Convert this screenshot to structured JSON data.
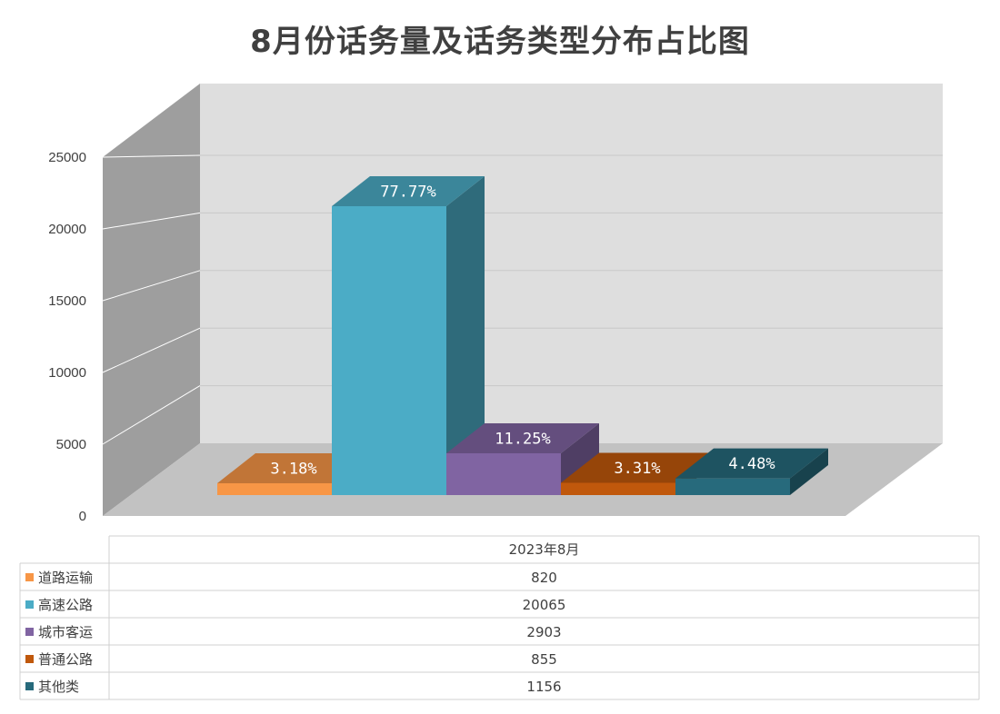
{
  "title": "8月份话务量及话务类型分布占比图",
  "chart_data": {
    "type": "bar",
    "title": "8月份话务量及话务类型分布占比图",
    "categories": [
      "2023年8月"
    ],
    "series": [
      {
        "name": "道路运输",
        "values": [
          820
        ],
        "data_label": "3.18%",
        "color": "#f79646"
      },
      {
        "name": "高速公路",
        "values": [
          20065
        ],
        "data_label": "77.77%",
        "color": "#4bacc6"
      },
      {
        "name": "城市客运",
        "values": [
          2903
        ],
        "data_label": "11.25%",
        "color": "#8064a2"
      },
      {
        "name": "普通公路",
        "values": [
          855
        ],
        "data_label": "3.31%",
        "color": "#c0580c"
      },
      {
        "name": "其他类",
        "values": [
          1156
        ],
        "data_label": "4.48%",
        "color": "#276a7c"
      }
    ],
    "ylim": [
      0,
      25000
    ],
    "yticks": [
      0,
      5000,
      10000,
      15000,
      20000,
      25000
    ],
    "grid": true,
    "style": "3d-column",
    "legend_placement": "data-table-left"
  }
}
